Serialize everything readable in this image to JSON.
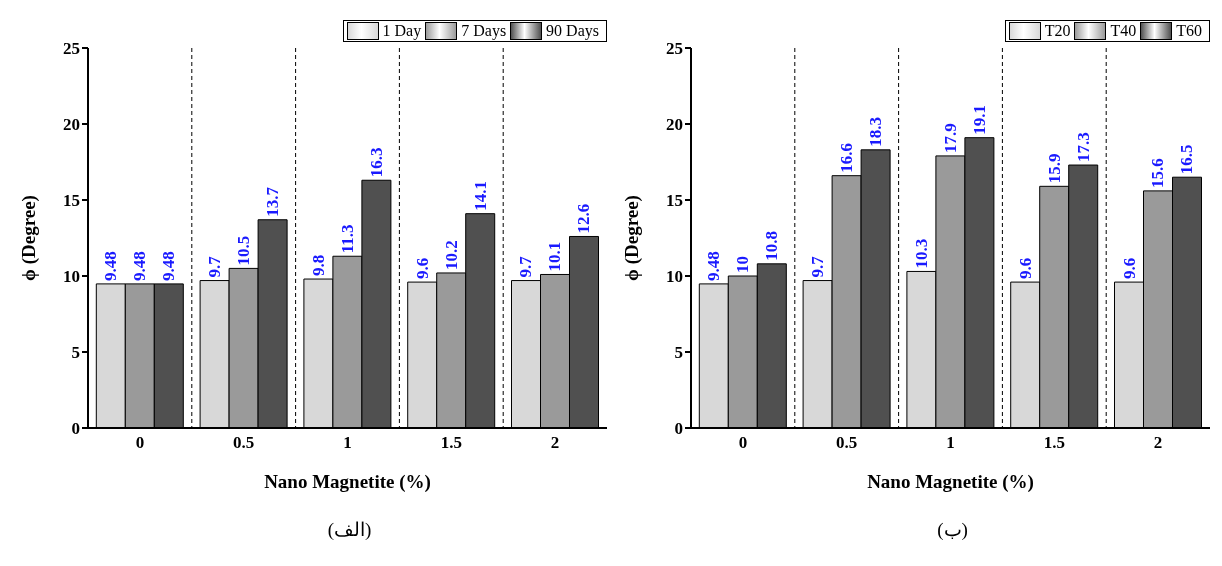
{
  "chart_data": [
    {
      "type": "bar",
      "xlabel": "Nano Magnetite (%)",
      "ylabel": "ϕ (Degree)",
      "categories": [
        "0",
        "0.5",
        "1",
        "1.5",
        "2"
      ],
      "series": [
        {
          "name": "1 Day",
          "color": "#d8d8d8",
          "values": [
            9.48,
            9.7,
            9.8,
            9.6,
            9.7
          ]
        },
        {
          "name": "7 Days",
          "color": "#9a9a9a",
          "values": [
            9.48,
            10.5,
            11.3,
            10.2,
            10.1
          ]
        },
        {
          "name": "90 Days",
          "color": "#505050",
          "values": [
            9.48,
            13.7,
            16.3,
            14.1,
            12.6
          ]
        }
      ],
      "ylim": [
        0,
        25
      ],
      "yticks": [
        0,
        5,
        10,
        15,
        20,
        25
      ],
      "grid": "x",
      "legend": "top right",
      "data_labels": true,
      "annotations": [
        "(الف)"
      ]
    },
    {
      "type": "bar",
      "xlabel": "Nano Magnetite (%)",
      "ylabel": "ϕ (Degree)",
      "categories": [
        "0",
        "0.5",
        "1",
        "1.5",
        "2"
      ],
      "series": [
        {
          "name": "T20",
          "color": "#d8d8d8",
          "values": [
            9.48,
            9.7,
            10.3,
            9.6,
            9.6
          ]
        },
        {
          "name": "T40",
          "color": "#9a9a9a",
          "values": [
            10,
            16.6,
            17.9,
            15.9,
            15.6
          ]
        },
        {
          "name": "T60",
          "color": "#505050",
          "values": [
            10.8,
            18.3,
            19.1,
            17.3,
            16.5
          ]
        }
      ],
      "ylim": [
        0,
        25
      ],
      "yticks": [
        0,
        5,
        10,
        15,
        20,
        25
      ],
      "grid": "x",
      "legend": "top right",
      "data_labels": true,
      "annotations": [
        "(ب)"
      ]
    }
  ]
}
